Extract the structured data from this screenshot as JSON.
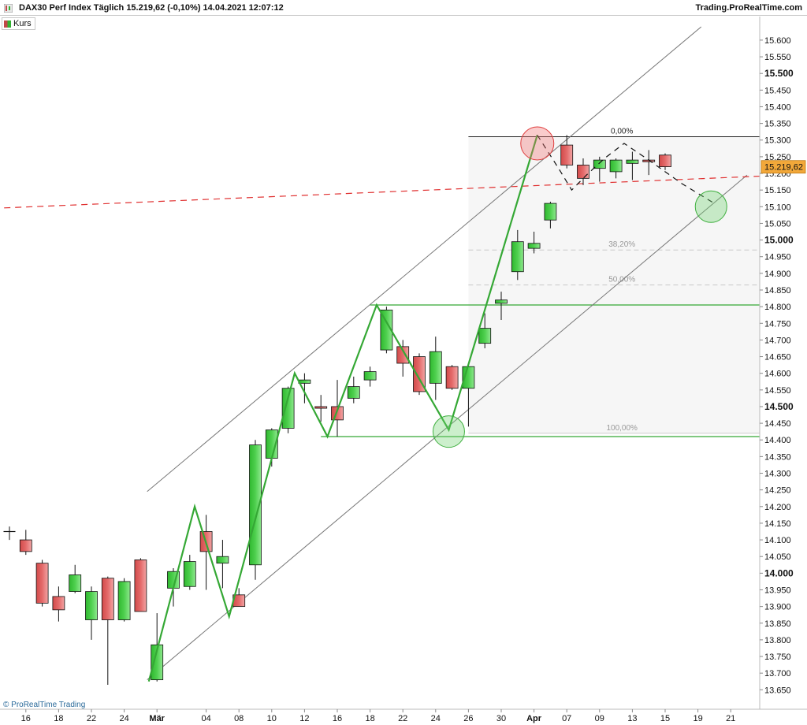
{
  "header": {
    "title": "DAX30 Perf Index Täglich 15.219,62 (-0,10%) 14.04.2021 12:07:12",
    "brand": "Trading.ProRealTime.com"
  },
  "legend": {
    "label": "Kurs"
  },
  "footer": {
    "brand": "© ProRealTime Trading"
  },
  "colors": {
    "up": "#4fd04f",
    "down": "#e46a6a",
    "trendline": "#35a835",
    "channel": "#777777",
    "dashed_red": "#e03030",
    "price_tag": "#f2a83a"
  },
  "chart_data": {
    "type": "candlestick",
    "ylim": [
      13620,
      15640
    ],
    "y_ticks": [
      13650,
      13700,
      13750,
      13800,
      13850,
      13900,
      13950,
      14000,
      14050,
      14100,
      14150,
      14200,
      14250,
      14300,
      14350,
      14400,
      14450,
      14500,
      14550,
      14600,
      14650,
      14700,
      14750,
      14800,
      14850,
      14900,
      14950,
      15000,
      15050,
      15100,
      15150,
      15200,
      15250,
      15300,
      15350,
      15400,
      15450,
      15500,
      15550,
      15600
    ],
    "y_tick_labels": [
      "13.650",
      "13.700",
      "13.750",
      "13.800",
      "13.850",
      "13.900",
      "13.950",
      "14.000",
      "14.050",
      "14.100",
      "14.150",
      "14.200",
      "14.250",
      "14.300",
      "14.350",
      "14.400",
      "14.450",
      "14.500",
      "14.550",
      "14.600",
      "14.650",
      "14.700",
      "14.750",
      "14.800",
      "14.850",
      "14.900",
      "14.950",
      "15.000",
      "15.050",
      "15.100",
      "15.150",
      "15.200",
      "15.250",
      "15.300",
      "15.350",
      "15.400",
      "15.450",
      "15.500",
      "15.550",
      "15.600"
    ],
    "y_bold_ticks": [
      14000,
      14500,
      15000,
      15500
    ],
    "x_tick_labels": [
      {
        "i": 1,
        "label": "16"
      },
      {
        "i": 3,
        "label": "18"
      },
      {
        "i": 5,
        "label": "22"
      },
      {
        "i": 7,
        "label": "24"
      },
      {
        "i": 9,
        "label": "Mär"
      },
      {
        "i": 12,
        "label": "04"
      },
      {
        "i": 14,
        "label": "08"
      },
      {
        "i": 16,
        "label": "10"
      },
      {
        "i": 18,
        "label": "12"
      },
      {
        "i": 20,
        "label": "16"
      },
      {
        "i": 22,
        "label": "18"
      },
      {
        "i": 24,
        "label": "22"
      },
      {
        "i": 26,
        "label": "24"
      },
      {
        "i": 28,
        "label": "26"
      },
      {
        "i": 30,
        "label": "30"
      },
      {
        "i": 32,
        "label": "Apr"
      },
      {
        "i": 34,
        "label": "07"
      },
      {
        "i": 36,
        "label": "09"
      },
      {
        "i": 38,
        "label": "13"
      },
      {
        "i": 40,
        "label": "15"
      },
      {
        "i": 42,
        "label": "19"
      },
      {
        "i": 44,
        "label": "21"
      }
    ],
    "candles": [
      {
        "o": 14125,
        "h": 14140,
        "l": 14100,
        "c": 14125
      },
      {
        "o": 14100,
        "h": 14130,
        "l": 14055,
        "c": 14065
      },
      {
        "o": 14030,
        "h": 14040,
        "l": 13900,
        "c": 13910
      },
      {
        "o": 13930,
        "h": 13960,
        "l": 13855,
        "c": 13890
      },
      {
        "o": 13945,
        "h": 14025,
        "l": 13940,
        "c": 13995
      },
      {
        "o": 13860,
        "h": 13960,
        "l": 13800,
        "c": 13945
      },
      {
        "o": 13985,
        "h": 13990,
        "l": 13665,
        "c": 13860
      },
      {
        "o": 13860,
        "h": 13985,
        "l": 13855,
        "c": 13975
      },
      {
        "o": 14040,
        "h": 14045,
        "l": 13885,
        "c": 13885
      },
      {
        "o": 13680,
        "h": 13880,
        "l": 13675,
        "c": 13785
      },
      {
        "o": 13955,
        "h": 14015,
        "l": 13900,
        "c": 14005
      },
      {
        "o": 13960,
        "h": 14055,
        "l": 13950,
        "c": 14035
      },
      {
        "o": 14125,
        "h": 14175,
        "l": 13950,
        "c": 14065
      },
      {
        "o": 14030,
        "h": 14100,
        "l": 13955,
        "c": 14050
      },
      {
        "o": 13935,
        "h": 13955,
        "l": 13920,
        "c": 13900
      },
      {
        "o": 14025,
        "h": 14400,
        "l": 13980,
        "c": 14385
      },
      {
        "o": 14345,
        "h": 14435,
        "l": 14320,
        "c": 14430
      },
      {
        "o": 14435,
        "h": 14560,
        "l": 14420,
        "c": 14555
      },
      {
        "o": 14570,
        "h": 14600,
        "l": 14510,
        "c": 14580
      },
      {
        "o": 14500,
        "h": 14535,
        "l": 14455,
        "c": 14495
      },
      {
        "o": 14500,
        "h": 14580,
        "l": 14410,
        "c": 14460
      },
      {
        "o": 14525,
        "h": 14590,
        "l": 14510,
        "c": 14560
      },
      {
        "o": 14580,
        "h": 14620,
        "l": 14560,
        "c": 14605
      },
      {
        "o": 14670,
        "h": 14800,
        "l": 14660,
        "c": 14790
      },
      {
        "o": 14680,
        "h": 14700,
        "l": 14590,
        "c": 14630
      },
      {
        "o": 14650,
        "h": 14660,
        "l": 14535,
        "c": 14545
      },
      {
        "o": 14570,
        "h": 14710,
        "l": 14520,
        "c": 14665
      },
      {
        "o": 14620,
        "h": 14625,
        "l": 14550,
        "c": 14555
      },
      {
        "o": 14555,
        "h": 14625,
        "l": 14440,
        "c": 14620
      },
      {
        "o": 14690,
        "h": 14780,
        "l": 14675,
        "c": 14735
      },
      {
        "o": 14810,
        "h": 14845,
        "l": 14760,
        "c": 14820
      },
      {
        "o": 14905,
        "h": 15030,
        "l": 14880,
        "c": 14995
      },
      {
        "o": 14975,
        "h": 15025,
        "l": 14960,
        "c": 14990
      },
      {
        "o": 15060,
        "h": 15115,
        "l": 15035,
        "c": 15110
      },
      {
        "o": 15285,
        "h": 15315,
        "l": 15215,
        "c": 15225
      },
      {
        "o": 15225,
        "h": 15245,
        "l": 15165,
        "c": 15185
      },
      {
        "o": 15215,
        "h": 15250,
        "l": 15175,
        "c": 15240
      },
      {
        "o": 15205,
        "h": 15245,
        "l": 15185,
        "c": 15240
      },
      {
        "o": 15230,
        "h": 15265,
        "l": 15180,
        "c": 15240
      },
      {
        "o": 15240,
        "h": 15270,
        "l": 15195,
        "c": 15235
      },
      {
        "o": 15255,
        "h": 15260,
        "l": 15210,
        "c": 15220
      }
    ],
    "last_price": 15219.62,
    "last_price_label": "15.219,62",
    "fibonacci": {
      "high": 15310,
      "low": 14420,
      "start_i": 28,
      "end_i": 45,
      "levels": [
        {
          "ratio": 0.0,
          "label": "0,00%"
        },
        {
          "ratio": 0.382,
          "label": "38,20%"
        },
        {
          "ratio": 0.5,
          "label": "50,00%"
        },
        {
          "ratio": 1.0,
          "label": "100,00%"
        }
      ]
    },
    "horizontal_lines": [
      {
        "value": 14805,
        "from_i": 22,
        "to_i": 45
      },
      {
        "value": 14410,
        "from_i": 19,
        "to_i": 45
      }
    ],
    "channel_lines": [
      {
        "from": {
          "i": 8.4,
          "v": 14245
        },
        "to": {
          "i": 42.2,
          "v": 15640
        }
      },
      {
        "from": {
          "i": 8.4,
          "v": 13680
        },
        "to": {
          "i": 45.0,
          "v": 15195
        }
      }
    ],
    "dashed_red_line": {
      "from": {
        "i": -1.0,
        "v": 15095
      },
      "to": {
        "i": 45.0,
        "v": 15190
      }
    },
    "zigzag": [
      {
        "i": 8.5,
        "v": 13675
      },
      {
        "i": 11.3,
        "v": 14200
      },
      {
        "i": 13.4,
        "v": 13870
      },
      {
        "i": 17.4,
        "v": 14600
      },
      {
        "i": 19.4,
        "v": 14410
      },
      {
        "i": 22.4,
        "v": 14805
      },
      {
        "i": 26.8,
        "v": 14430
      },
      {
        "i": 32.2,
        "v": 15315
      }
    ],
    "projection": [
      {
        "i": 32.2,
        "v": 15315
      },
      {
        "i": 33.5,
        "v": 15215
      },
      {
        "i": 34.3,
        "v": 15150
      },
      {
        "i": 35.2,
        "v": 15195
      },
      {
        "i": 36.3,
        "v": 15245
      },
      {
        "i": 37.5,
        "v": 15290
      },
      {
        "i": 39.0,
        "v": 15240
      },
      {
        "i": 41.0,
        "v": 15170
      },
      {
        "i": 43.0,
        "v": 15110
      }
    ],
    "circles": [
      {
        "i": 32.2,
        "v": 15290,
        "color": "red"
      },
      {
        "i": 26.8,
        "v": 14425,
        "color": "green"
      },
      {
        "i": 42.8,
        "v": 15100,
        "color": "green"
      }
    ]
  }
}
